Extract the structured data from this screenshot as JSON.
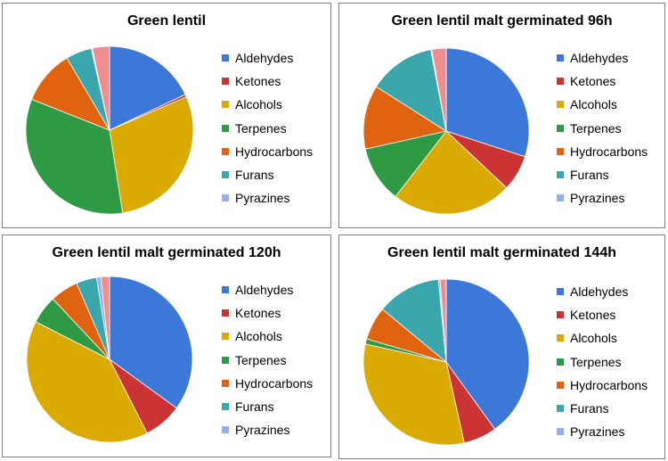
{
  "legend_labels": [
    "Aldehydes",
    "Ketones",
    "Alcohols",
    "Terpenes",
    "Hydrocarbons",
    "Furans",
    "Pyrazines"
  ],
  "colors": [
    "#3c78d8",
    "#cc3333",
    "#dbaa00",
    "#2e9a44",
    "#e06410",
    "#3aa7ac",
    "#8fb0ee",
    "#ee8e8e"
  ],
  "chart_data": [
    {
      "type": "pie",
      "title": "Green lentil",
      "legend_position": "right",
      "series": [
        {
          "category": "Aldehydes",
          "value": 18.0
        },
        {
          "category": "Ketones",
          "value": 0.5
        },
        {
          "category": "Alcohols",
          "value": 29.0
        },
        {
          "category": "Terpenes",
          "value": 33.5
        },
        {
          "category": "Hydrocarbons",
          "value": 10.5
        },
        {
          "category": "Furans",
          "value": 5.0
        },
        {
          "category": "Pyrazines",
          "value": 0.2
        },
        {
          "category": "",
          "value": 3.3
        }
      ]
    },
    {
      "type": "pie",
      "title": "Green lentil malt germinated 96h",
      "legend_position": "right",
      "series": [
        {
          "category": "Aldehydes",
          "value": 30.0
        },
        {
          "category": "Ketones",
          "value": 7.0
        },
        {
          "category": "Alcohols",
          "value": 23.5
        },
        {
          "category": "Terpenes",
          "value": 11.0
        },
        {
          "category": "Hydrocarbons",
          "value": 12.5
        },
        {
          "category": "Furans",
          "value": 13.0
        },
        {
          "category": "Pyrazines",
          "value": 0.2
        },
        {
          "category": "",
          "value": 2.8
        }
      ]
    },
    {
      "type": "pie",
      "title": "Green lentil malt germinated 120h",
      "legend_position": "right",
      "series": [
        {
          "category": "Aldehydes",
          "value": 35.0
        },
        {
          "category": "Ketones",
          "value": 7.5
        },
        {
          "category": "Alcohols",
          "value": 40.0
        },
        {
          "category": "Terpenes",
          "value": 5.5
        },
        {
          "category": "Hydrocarbons",
          "value": 5.5
        },
        {
          "category": "Furans",
          "value": 4.0
        },
        {
          "category": "Pyrazines",
          "value": 0.8
        },
        {
          "category": "",
          "value": 1.7
        }
      ]
    },
    {
      "type": "pie",
      "title": "Green lentil malt germinated 144h",
      "legend_position": "right",
      "series": [
        {
          "category": "Aldehydes",
          "value": 40.0
        },
        {
          "category": "Ketones",
          "value": 6.5
        },
        {
          "category": "Alcohols",
          "value": 32.0
        },
        {
          "category": "Terpenes",
          "value": 1.0
        },
        {
          "category": "Hydrocarbons",
          "value": 6.5
        },
        {
          "category": "Furans",
          "value": 12.5
        },
        {
          "category": "Pyrazines",
          "value": 0.3
        },
        {
          "category": "",
          "value": 1.2
        }
      ]
    }
  ]
}
